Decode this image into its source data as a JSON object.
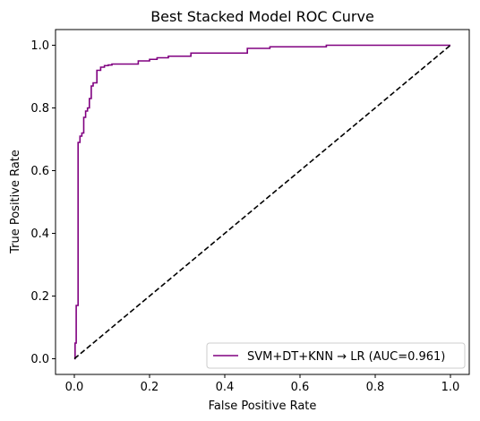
{
  "chart_data": {
    "type": "line",
    "title": "Best Stacked Model ROC Curve",
    "xlabel": "False Positive Rate",
    "ylabel": "True Positive Rate",
    "xlim": [
      -0.05,
      1.05
    ],
    "ylim": [
      -0.05,
      1.05
    ],
    "xticks": [
      0.0,
      0.2,
      0.4,
      0.6,
      0.8,
      1.0
    ],
    "xtick_labels": [
      "0.0",
      "0.2",
      "0.4",
      "0.6",
      "0.8",
      "1.0"
    ],
    "yticks": [
      0.0,
      0.2,
      0.4,
      0.6,
      0.8,
      1.0
    ],
    "ytick_labels": [
      "0.0",
      "0.2",
      "0.4",
      "0.6",
      "0.8",
      "1.0"
    ],
    "grid": false,
    "legend_position": "lower-right",
    "series": [
      {
        "name": "SVM+DT+KNN → LR (AUC=0.961)",
        "color": "#800080",
        "style": "solid",
        "step": true,
        "x": [
          0.0,
          0.0,
          0.002,
          0.002,
          0.005,
          0.005,
          0.01,
          0.01,
          0.015,
          0.015,
          0.02,
          0.02,
          0.025,
          0.025,
          0.03,
          0.03,
          0.035,
          0.035,
          0.04,
          0.04,
          0.045,
          0.045,
          0.05,
          0.05,
          0.06,
          0.06,
          0.07,
          0.07,
          0.08,
          0.08,
          0.09,
          0.09,
          0.1,
          0.1,
          0.17,
          0.17,
          0.2,
          0.2,
          0.22,
          0.22,
          0.25,
          0.25,
          0.31,
          0.31,
          0.46,
          0.46,
          0.52,
          0.52,
          0.67,
          0.67,
          1.0
        ],
        "y": [
          0.0,
          0.0,
          0.0,
          0.05,
          0.05,
          0.17,
          0.17,
          0.69,
          0.69,
          0.71,
          0.71,
          0.72,
          0.72,
          0.77,
          0.77,
          0.79,
          0.79,
          0.8,
          0.8,
          0.83,
          0.83,
          0.87,
          0.87,
          0.88,
          0.88,
          0.92,
          0.92,
          0.93,
          0.93,
          0.935,
          0.935,
          0.937,
          0.937,
          0.94,
          0.94,
          0.95,
          0.95,
          0.955,
          0.955,
          0.96,
          0.96,
          0.965,
          0.965,
          0.975,
          0.975,
          0.99,
          0.99,
          0.995,
          0.995,
          1.0,
          1.0
        ]
      },
      {
        "name": "",
        "color": "#000000",
        "style": "dashed",
        "x": [
          0.0,
          1.0
        ],
        "y": [
          0.0,
          1.0
        ]
      }
    ]
  }
}
